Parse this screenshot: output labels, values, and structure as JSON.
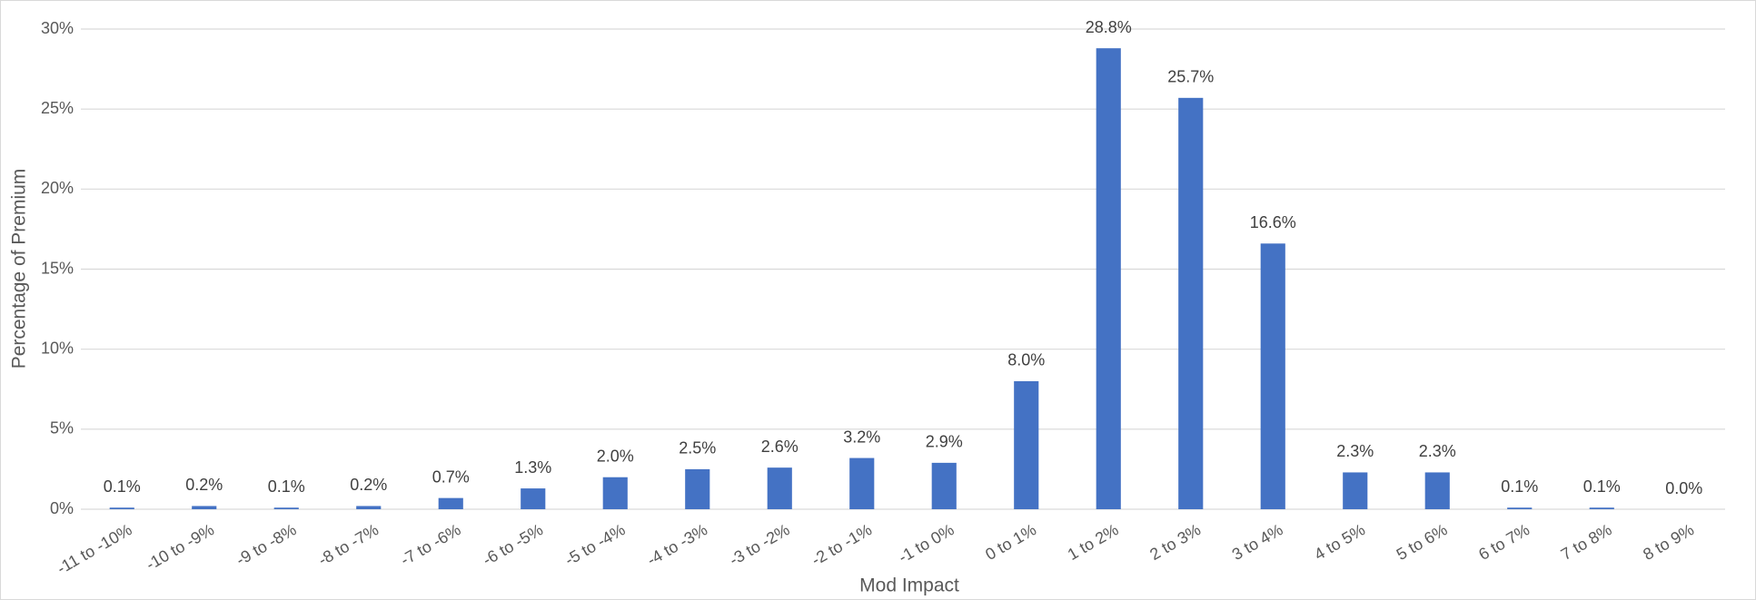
{
  "chart_data": {
    "type": "bar",
    "x_label": "Mod Impact",
    "y_label": "Percentage of Premium",
    "categories": [
      "-11 to -10%",
      "-10 to -9%",
      "-9 to -8%",
      "-8 to -7%",
      "-7 to -6%",
      "-6 to -5%",
      "-5 to -4%",
      "-4 to -3%",
      "-3 to -2%",
      "-2 to -1%",
      "-1 to 0%",
      "0 to 1%",
      "1 to 2%",
      "2 to 3%",
      "3 to 4%",
      "4 to 5%",
      "5 to 6%",
      "6 to 7%",
      "7 to 8%",
      "8 to 9%"
    ],
    "values": [
      0.1,
      0.2,
      0.1,
      0.2,
      0.7,
      1.3,
      2.0,
      2.5,
      2.6,
      3.2,
      2.9,
      8.0,
      28.8,
      25.7,
      16.6,
      2.3,
      2.3,
      0.1,
      0.1,
      0.0
    ],
    "value_labels": [
      "0.1%",
      "0.2%",
      "0.1%",
      "0.2%",
      "0.7%",
      "1.3%",
      "2.0%",
      "2.5%",
      "2.6%",
      "3.2%",
      "2.9%",
      "8.0%",
      "28.8%",
      "25.7%",
      "16.6%",
      "2.3%",
      "2.3%",
      "0.1%",
      "0.1%",
      "0.0%"
    ],
    "color": "#4472c4",
    "ylim": [
      0,
      30
    ],
    "yticks": [
      {
        "value": 0,
        "label": "0%"
      },
      {
        "value": 5,
        "label": "5%"
      },
      {
        "value": 10,
        "label": "10%"
      },
      {
        "value": 15,
        "label": "15%"
      },
      {
        "value": 20,
        "label": "20%"
      },
      {
        "value": 25,
        "label": "25%"
      },
      {
        "value": 30,
        "label": "30%"
      }
    ],
    "grid": true
  }
}
